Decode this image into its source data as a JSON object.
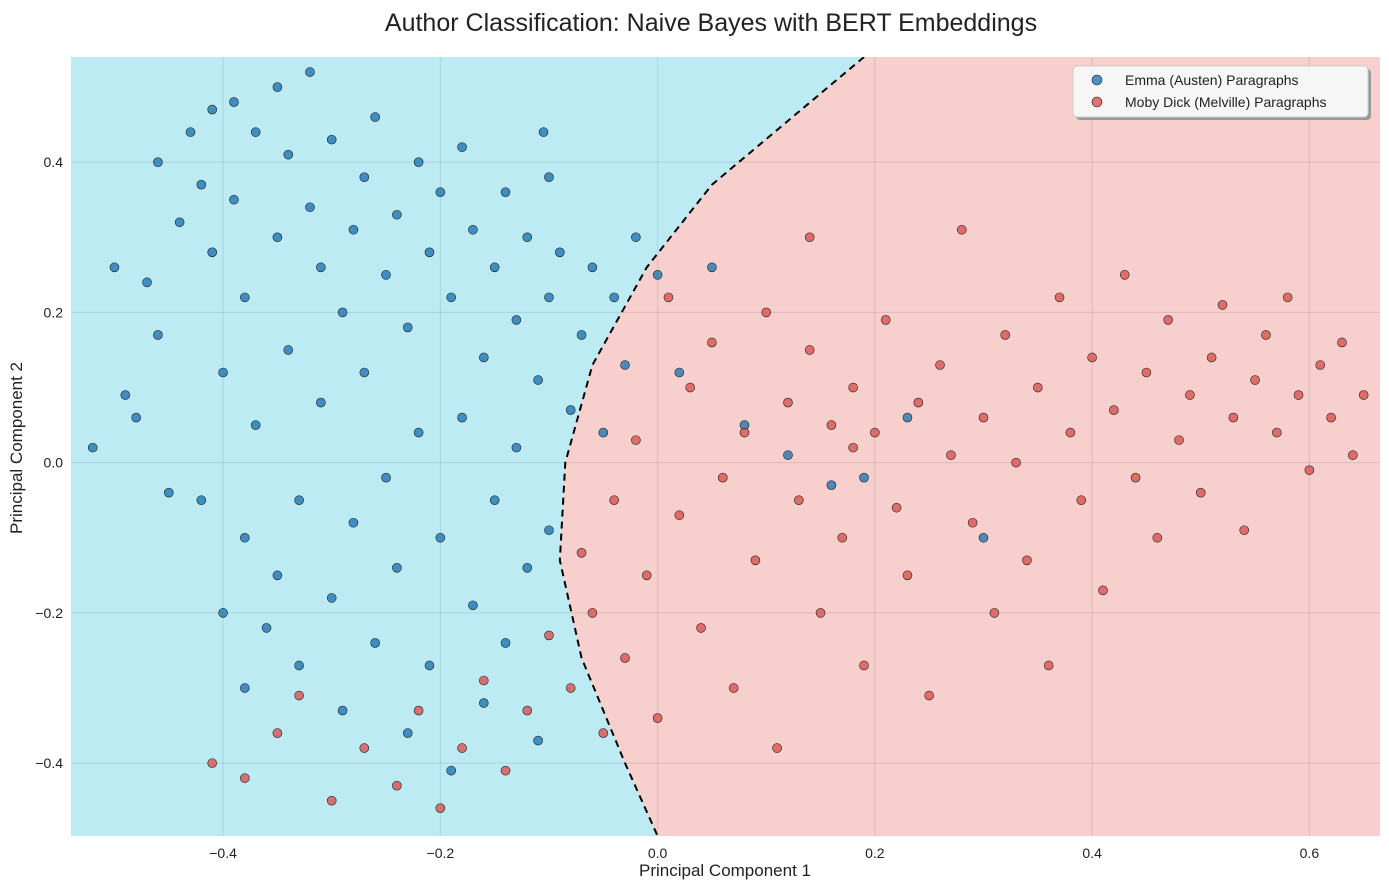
{
  "chart_data": {
    "type": "scatter",
    "title": "Author Classification: Naive Bayes with BERT Embeddings",
    "xlabel": "Principal Component 1",
    "ylabel": "Principal Component 2",
    "xlim": [
      -0.54,
      0.665
    ],
    "ylim": [
      -0.497,
      0.54
    ],
    "xticks": [
      -0.4,
      -0.2,
      0.0,
      0.2,
      0.4,
      0.6
    ],
    "yticks": [
      -0.4,
      -0.2,
      0.0,
      0.2,
      0.4
    ],
    "xtick_labels": [
      "−0.4",
      "−0.2",
      "0.0",
      "0.2",
      "0.4",
      "0.6"
    ],
    "ytick_labels": [
      "−0.4",
      "−0.2",
      "0.0",
      "0.2",
      "0.4"
    ],
    "grid": true,
    "legend_position": "top-right",
    "decision_regions": {
      "boundary_style": "dashed",
      "boundary_points": [
        [
          0.19,
          0.54
        ],
        [
          0.05,
          0.37
        ],
        [
          -0.01,
          0.26
        ],
        [
          -0.06,
          0.13
        ],
        [
          -0.085,
          0.0
        ],
        [
          -0.09,
          -0.13
        ],
        [
          -0.07,
          -0.26
        ],
        [
          -0.03,
          -0.4
        ],
        [
          0.0,
          -0.497
        ]
      ],
      "left_class": "Emma (Austen) Paragraphs",
      "right_class": "Moby Dick (Melville) Paragraphs"
    },
    "series": [
      {
        "name": "Emma (Austen) Paragraphs",
        "color": "#1f77b4",
        "region_color": "#bdebf4",
        "points": [
          [
            -0.52,
            0.02
          ],
          [
            -0.5,
            0.26
          ],
          [
            -0.49,
            0.09
          ],
          [
            -0.48,
            0.06
          ],
          [
            -0.47,
            0.24
          ],
          [
            -0.46,
            0.17
          ],
          [
            -0.46,
            0.4
          ],
          [
            -0.45,
            -0.04
          ],
          [
            -0.44,
            0.32
          ],
          [
            -0.43,
            0.44
          ],
          [
            -0.42,
            0.37
          ],
          [
            -0.42,
            -0.05
          ],
          [
            -0.41,
            0.47
          ],
          [
            -0.41,
            0.28
          ],
          [
            -0.4,
            0.12
          ],
          [
            -0.4,
            -0.2
          ],
          [
            -0.39,
            0.48
          ],
          [
            -0.39,
            0.35
          ],
          [
            -0.38,
            0.22
          ],
          [
            -0.38,
            -0.1
          ],
          [
            -0.38,
            -0.3
          ],
          [
            -0.37,
            0.44
          ],
          [
            -0.37,
            0.05
          ],
          [
            -0.36,
            -0.22
          ],
          [
            -0.35,
            0.5
          ],
          [
            -0.35,
            0.3
          ],
          [
            -0.35,
            -0.15
          ],
          [
            -0.34,
            0.41
          ],
          [
            -0.34,
            0.15
          ],
          [
            -0.33,
            -0.27
          ],
          [
            -0.33,
            -0.05
          ],
          [
            -0.32,
            0.52
          ],
          [
            -0.32,
            0.34
          ],
          [
            -0.31,
            0.26
          ],
          [
            -0.31,
            0.08
          ],
          [
            -0.3,
            -0.18
          ],
          [
            -0.3,
            0.43
          ],
          [
            -0.29,
            0.2
          ],
          [
            -0.29,
            -0.33
          ],
          [
            -0.28,
            0.31
          ],
          [
            -0.28,
            -0.08
          ],
          [
            -0.27,
            0.38
          ],
          [
            -0.27,
            0.12
          ],
          [
            -0.26,
            -0.24
          ],
          [
            -0.26,
            0.46
          ],
          [
            -0.25,
            0.25
          ],
          [
            -0.25,
            -0.02
          ],
          [
            -0.24,
            0.33
          ],
          [
            -0.24,
            -0.14
          ],
          [
            -0.23,
            0.18
          ],
          [
            -0.23,
            -0.36
          ],
          [
            -0.22,
            0.4
          ],
          [
            -0.22,
            0.04
          ],
          [
            -0.21,
            -0.27
          ],
          [
            -0.21,
            0.28
          ],
          [
            -0.2,
            0.36
          ],
          [
            -0.2,
            -0.1
          ],
          [
            -0.19,
            0.22
          ],
          [
            -0.19,
            -0.41
          ],
          [
            -0.18,
            0.42
          ],
          [
            -0.18,
            0.06
          ],
          [
            -0.17,
            -0.19
          ],
          [
            -0.17,
            0.31
          ],
          [
            -0.16,
            0.14
          ],
          [
            -0.16,
            -0.32
          ],
          [
            -0.15,
            0.26
          ],
          [
            -0.15,
            -0.05
          ],
          [
            -0.14,
            0.36
          ],
          [
            -0.14,
            -0.24
          ],
          [
            -0.13,
            0.19
          ],
          [
            -0.13,
            0.02
          ],
          [
            -0.12,
            -0.14
          ],
          [
            -0.12,
            0.3
          ],
          [
            -0.11,
            -0.37
          ],
          [
            -0.11,
            0.11
          ],
          [
            -0.1,
            0.22
          ],
          [
            -0.1,
            -0.09
          ],
          [
            -0.09,
            0.28
          ],
          [
            -0.08,
            0.07
          ],
          [
            -0.07,
            0.17
          ],
          [
            -0.06,
            0.26
          ],
          [
            -0.05,
            0.04
          ],
          [
            -0.04,
            0.22
          ],
          [
            -0.03,
            0.13
          ],
          [
            -0.02,
            0.3
          ],
          [
            0.0,
            0.25
          ],
          [
            0.02,
            0.12
          ],
          [
            0.05,
            0.26
          ],
          [
            0.08,
            0.05
          ],
          [
            0.12,
            0.01
          ],
          [
            0.16,
            -0.03
          ],
          [
            0.19,
            -0.02
          ],
          [
            0.23,
            0.06
          ],
          [
            0.3,
            -0.1
          ],
          [
            -0.105,
            0.44
          ],
          [
            -0.1,
            0.38
          ]
        ]
      },
      {
        "name": "Moby Dick (Melville) Paragraphs",
        "color": "#d9534f",
        "region_color": "#f7cfcc",
        "points": [
          [
            -0.41,
            -0.4
          ],
          [
            -0.38,
            -0.42
          ],
          [
            -0.35,
            -0.36
          ],
          [
            -0.33,
            -0.31
          ],
          [
            -0.3,
            -0.45
          ],
          [
            -0.27,
            -0.38
          ],
          [
            -0.24,
            -0.43
          ],
          [
            -0.22,
            -0.33
          ],
          [
            -0.2,
            -0.46
          ],
          [
            -0.18,
            -0.38
          ],
          [
            -0.16,
            -0.29
          ],
          [
            -0.14,
            -0.41
          ],
          [
            -0.12,
            -0.33
          ],
          [
            -0.1,
            -0.23
          ],
          [
            -0.08,
            -0.3
          ],
          [
            -0.07,
            -0.12
          ],
          [
            -0.06,
            -0.2
          ],
          [
            -0.05,
            -0.36
          ],
          [
            -0.04,
            -0.05
          ],
          [
            -0.03,
            -0.26
          ],
          [
            -0.02,
            0.03
          ],
          [
            -0.01,
            -0.15
          ],
          [
            0.0,
            -0.34
          ],
          [
            0.01,
            0.22
          ],
          [
            0.02,
            -0.07
          ],
          [
            0.03,
            0.1
          ],
          [
            0.04,
            -0.22
          ],
          [
            0.05,
            0.16
          ],
          [
            0.06,
            -0.02
          ],
          [
            0.07,
            -0.3
          ],
          [
            0.08,
            0.04
          ],
          [
            0.09,
            -0.13
          ],
          [
            0.1,
            0.2
          ],
          [
            0.11,
            -0.38
          ],
          [
            0.12,
            0.08
          ],
          [
            0.13,
            -0.05
          ],
          [
            0.14,
            0.15
          ],
          [
            0.14,
            0.3
          ],
          [
            0.15,
            -0.2
          ],
          [
            0.16,
            0.05
          ],
          [
            0.17,
            -0.1
          ],
          [
            0.18,
            0.02
          ],
          [
            0.18,
            0.1
          ],
          [
            0.19,
            -0.27
          ],
          [
            0.2,
            0.04
          ],
          [
            0.21,
            0.19
          ],
          [
            0.22,
            -0.06
          ],
          [
            0.23,
            -0.15
          ],
          [
            0.24,
            0.08
          ],
          [
            0.25,
            -0.31
          ],
          [
            0.26,
            0.13
          ],
          [
            0.27,
            0.01
          ],
          [
            0.28,
            0.31
          ],
          [
            0.29,
            -0.08
          ],
          [
            0.3,
            0.06
          ],
          [
            0.31,
            -0.2
          ],
          [
            0.32,
            0.17
          ],
          [
            0.33,
            0.0
          ],
          [
            0.34,
            -0.13
          ],
          [
            0.35,
            0.1
          ],
          [
            0.36,
            -0.27
          ],
          [
            0.37,
            0.22
          ],
          [
            0.38,
            0.04
          ],
          [
            0.39,
            -0.05
          ],
          [
            0.4,
            0.14
          ],
          [
            0.41,
            -0.17
          ],
          [
            0.42,
            0.07
          ],
          [
            0.43,
            0.25
          ],
          [
            0.44,
            -0.02
          ],
          [
            0.45,
            0.12
          ],
          [
            0.46,
            -0.1
          ],
          [
            0.47,
            0.19
          ],
          [
            0.48,
            0.03
          ],
          [
            0.49,
            0.09
          ],
          [
            0.5,
            -0.04
          ],
          [
            0.51,
            0.14
          ],
          [
            0.52,
            0.21
          ],
          [
            0.53,
            0.06
          ],
          [
            0.54,
            -0.09
          ],
          [
            0.55,
            0.11
          ],
          [
            0.56,
            0.17
          ],
          [
            0.57,
            0.04
          ],
          [
            0.58,
            0.22
          ],
          [
            0.59,
            0.09
          ],
          [
            0.6,
            -0.01
          ],
          [
            0.61,
            0.13
          ],
          [
            0.62,
            0.06
          ],
          [
            0.63,
            0.16
          ],
          [
            0.64,
            0.01
          ],
          [
            0.65,
            0.09
          ]
        ]
      }
    ]
  }
}
